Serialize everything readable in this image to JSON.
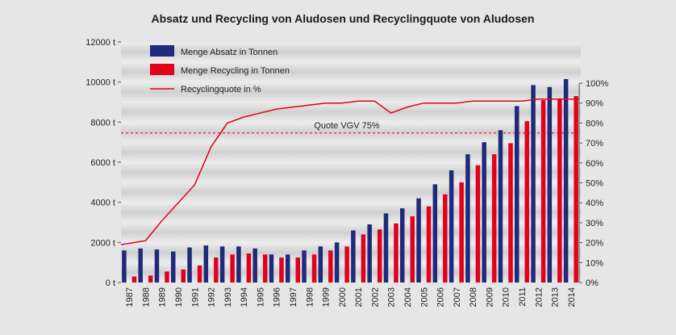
{
  "chart_data": {
    "type": "bar",
    "title": "Absatz und Recycling von Aludosen und Recyclingquote von Aludosen",
    "categories": [
      "1987",
      "1988",
      "1989",
      "1990",
      "1991",
      "1992",
      "1993",
      "1994",
      "1995",
      "1996",
      "1997",
      "1998",
      "1999",
      "2000",
      "2001",
      "2002",
      "2003",
      "2004",
      "2005",
      "2006",
      "2007",
      "2008",
      "2009",
      "2010",
      "2011",
      "2012",
      "2013",
      "2014"
    ],
    "series": [
      {
        "name": "Menge Absatz in Tonnen",
        "kind": "bar",
        "axis": "left",
        "color": "#1f2a7a",
        "values": [
          1600,
          1700,
          1650,
          1550,
          1750,
          1850,
          1800,
          1800,
          1700,
          1400,
          1400,
          1600,
          1800,
          2000,
          2600,
          2900,
          3450,
          3700,
          4200,
          4900,
          5600,
          6400,
          7000,
          7600,
          8800,
          9850,
          9750,
          10150
        ]
      },
      {
        "name": "Menge Recycling in Tonnen",
        "kind": "bar",
        "axis": "left",
        "color": "#e3001b",
        "values": [
          300,
          350,
          550,
          650,
          850,
          1250,
          1400,
          1450,
          1400,
          1250,
          1250,
          1400,
          1600,
          1800,
          2400,
          2650,
          2950,
          3300,
          3800,
          4400,
          5000,
          5850,
          6400,
          6950,
          8050,
          9100,
          9150,
          9300
        ]
      },
      {
        "name": "Recyclingquote in %",
        "kind": "line",
        "axis": "right",
        "color": "#e3001b",
        "values": [
          19,
          21,
          31,
          40,
          49,
          68,
          80,
          83,
          85,
          87,
          88,
          89,
          90,
          90,
          91,
          91,
          85,
          88,
          90,
          90,
          90,
          91,
          91,
          91,
          91,
          92,
          92,
          92
        ]
      }
    ],
    "left_axis": {
      "min": 0,
      "max": 12000,
      "ticks": [
        0,
        2000,
        4000,
        6000,
        8000,
        10000,
        12000
      ],
      "tick_labels": [
        "0 t",
        "2000 t",
        "4000 t",
        "6000 t",
        "8000 t",
        "10000 t",
        "12000 t"
      ]
    },
    "right_axis": {
      "min": 0,
      "max": 100,
      "ticks": [
        0,
        10,
        20,
        30,
        40,
        50,
        60,
        70,
        80,
        90,
        100
      ],
      "tick_labels": [
        "0%",
        "10%",
        "20%",
        "30%",
        "40%",
        "50%",
        "60%",
        "70%",
        "80%",
        "90%",
        "100%"
      ]
    },
    "reference_line": {
      "label": "Quote VGV 75%",
      "value": 75,
      "axis": "right",
      "color": "#e3001b"
    },
    "legend": "top-left",
    "grid": false
  }
}
